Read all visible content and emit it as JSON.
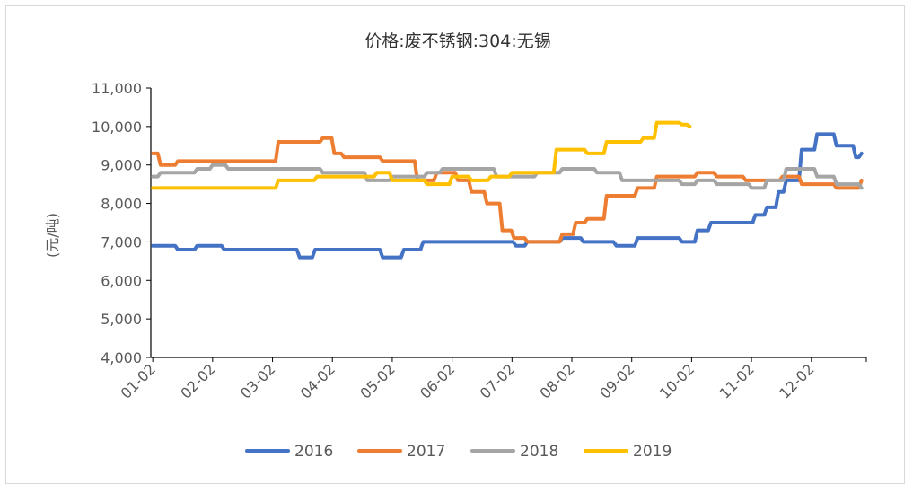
{
  "chart_data": {
    "type": "line",
    "title": "价格:废不锈钢:304:无锡",
    "ylabel": "(元/吨)",
    "xlabel": "",
    "ylim": [
      4000,
      11000
    ],
    "yticks": [
      "4,000",
      "5,000",
      "6,000",
      "7,000",
      "8,000",
      "9,000",
      "10,000",
      "11,000"
    ],
    "ytick_values": [
      4000,
      5000,
      6000,
      7000,
      8000,
      9000,
      10000,
      11000
    ],
    "xlim_month": [
      1.0,
      12.95
    ],
    "xticks": [
      "01-02",
      "02-02",
      "03-02",
      "04-02",
      "05-02",
      "06-02",
      "07-02",
      "08-02",
      "09-02",
      "10-02",
      "11-02",
      "12-02"
    ],
    "legend_position": "bottom",
    "grid": false,
    "series": [
      {
        "name": "2016",
        "color": "#4472C4",
        "x": [
          "01-02",
          "01-15",
          "01-25",
          "02-08",
          "03-16",
          "03-24",
          "04-10",
          "04-28",
          "05-08",
          "05-18",
          "06-20",
          "07-04",
          "07-10",
          "07-20",
          "07-28",
          "08-08",
          "08-25",
          "09-05",
          "09-15",
          "09-28",
          "10-05",
          "10-12",
          "10-20",
          "10-28",
          "11-04",
          "11-10",
          "11-16",
          "11-20",
          "11-28",
          "12-05",
          "12-15",
          "12-25",
          "12-28"
        ],
        "y": [
          6900,
          6800,
          6900,
          6800,
          6600,
          6800,
          6800,
          6600,
          6800,
          7000,
          7000,
          6900,
          7000,
          7000,
          7100,
          7000,
          6900,
          7100,
          7100,
          7000,
          7300,
          7500,
          7500,
          7500,
          7700,
          7900,
          8300,
          8600,
          9400,
          9800,
          9500,
          9200,
          9300
        ]
      },
      {
        "name": "2017",
        "color": "#ED7D31",
        "x": [
          "01-02",
          "01-06",
          "01-15",
          "02-28",
          "03-05",
          "03-10",
          "03-28",
          "04-03",
          "04-08",
          "04-15",
          "04-28",
          "05-02",
          "05-10",
          "05-15",
          "05-25",
          "06-05",
          "06-12",
          "06-20",
          "06-28",
          "07-03",
          "07-10",
          "07-20",
          "07-28",
          "08-04",
          "08-10",
          "08-20",
          "08-28",
          "09-05",
          "09-15",
          "09-25",
          "10-05",
          "10-15",
          "10-30",
          "11-08",
          "11-18",
          "11-28",
          "12-05",
          "12-15",
          "12-28"
        ],
        "y": [
          9300,
          9000,
          9100,
          9100,
          9600,
          9600,
          9700,
          9300,
          9200,
          9200,
          9100,
          9100,
          9100,
          8600,
          8800,
          8600,
          8300,
          8000,
          7300,
          7100,
          7000,
          7000,
          7200,
          7500,
          7600,
          8200,
          8200,
          8400,
          8700,
          8700,
          8800,
          8700,
          8600,
          8600,
          8700,
          8500,
          8500,
          8400,
          8600
        ]
      },
      {
        "name": "2018",
        "color": "#A5A5A5",
        "x": [
          "01-02",
          "01-06",
          "01-15",
          "01-25",
          "02-02",
          "02-10",
          "02-28",
          "03-10",
          "03-28",
          "04-03",
          "04-10",
          "04-20",
          "05-02",
          "05-10",
          "05-20",
          "05-28",
          "06-05",
          "06-15",
          "06-25",
          "07-02",
          "07-15",
          "07-28",
          "08-05",
          "08-15",
          "08-28",
          "09-05",
          "09-15",
          "09-28",
          "10-05",
          "10-15",
          "10-25",
          "11-02",
          "11-10",
          "11-20",
          "11-28",
          "12-05",
          "12-15",
          "12-28"
        ],
        "y": [
          8700,
          8800,
          8800,
          8900,
          9000,
          8900,
          8900,
          8900,
          8800,
          8800,
          8800,
          8600,
          8700,
          8700,
          8800,
          8900,
          8900,
          8900,
          8700,
          8700,
          8800,
          8900,
          8900,
          8800,
          8600,
          8600,
          8600,
          8500,
          8600,
          8500,
          8500,
          8400,
          8600,
          8900,
          8900,
          8700,
          8500,
          8400
        ]
      },
      {
        "name": "2019",
        "color": "#FFC000",
        "x": [
          "01-02",
          "01-15",
          "02-02",
          "02-28",
          "03-05",
          "03-15",
          "03-25",
          "04-05",
          "04-15",
          "04-25",
          "05-02",
          "05-12",
          "05-20",
          "06-02",
          "06-12",
          "06-22",
          "07-02",
          "07-12",
          "07-20",
          "07-25",
          "08-02",
          "08-10",
          "08-20",
          "08-28",
          "09-02",
          "09-08",
          "09-15",
          "09-22",
          "09-28",
          "10-01"
        ],
        "y": [
          8400,
          8400,
          8400,
          8400,
          8600,
          8600,
          8700,
          8700,
          8700,
          8800,
          8600,
          8600,
          8500,
          8700,
          8600,
          8700,
          8800,
          8800,
          8800,
          9400,
          9400,
          9300,
          9600,
          9600,
          9600,
          9700,
          10100,
          10100,
          10050,
          10000
        ]
      }
    ]
  }
}
